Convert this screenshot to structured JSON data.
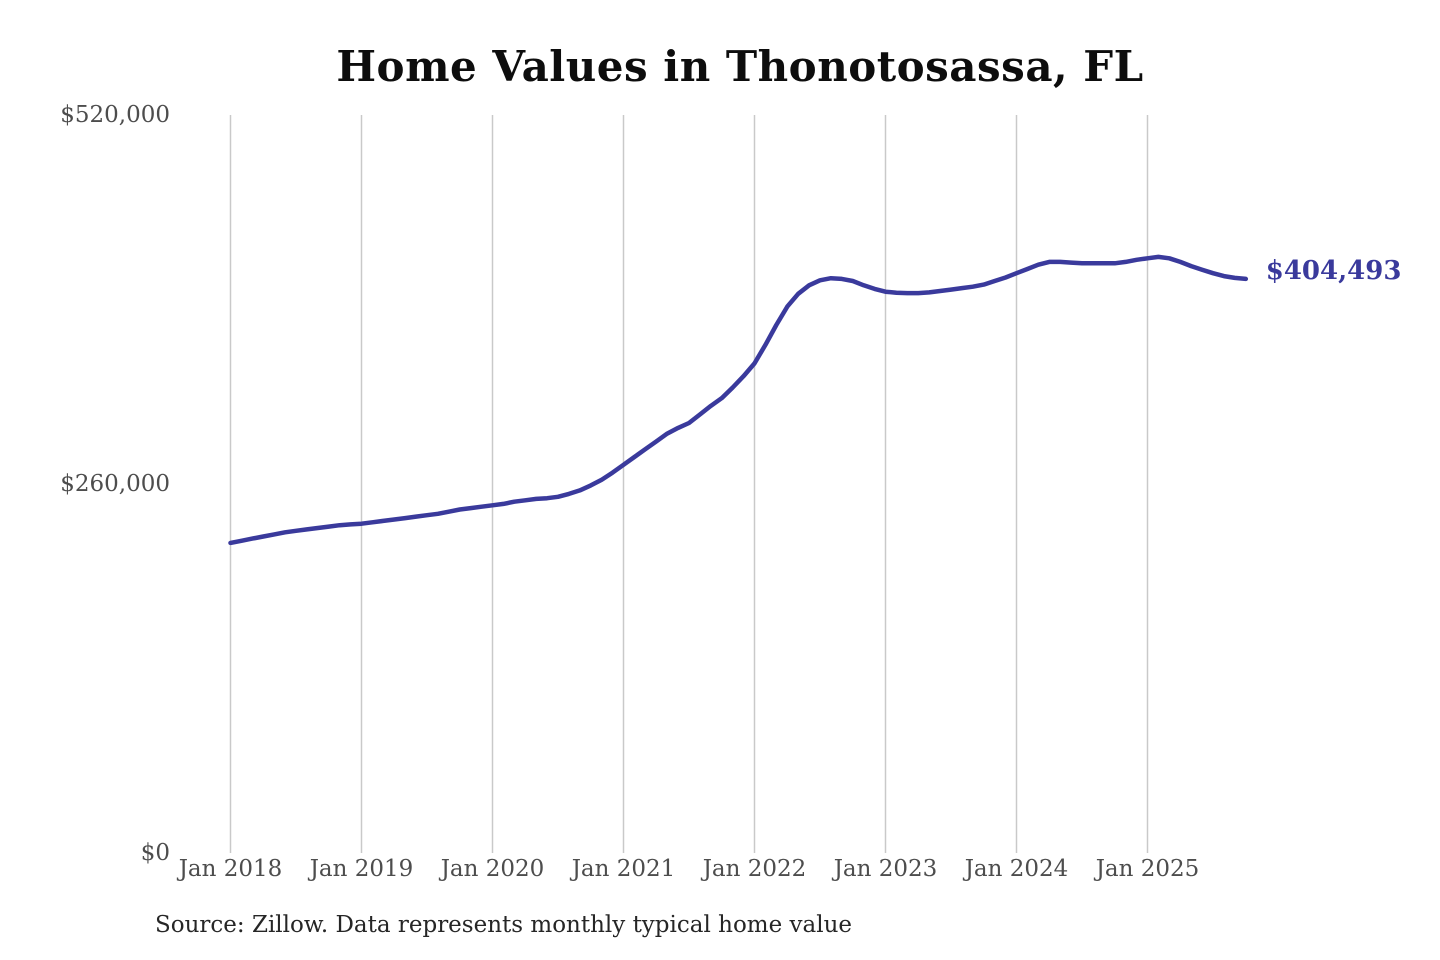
{
  "chart": {
    "title": "Home Values in Thonotosassa, FL",
    "end_label": "$404,493",
    "source": "Source: Zillow. Data represents monthly typical home value",
    "colors": {
      "line": "#3a3a9c",
      "end_label": "#3a3a9c",
      "gridline": "#c9c9c9",
      "tick_text": "#4d4d4d",
      "title_text": "#0d0d0d",
      "source_text": "#262626",
      "background": "#ffffff"
    }
  },
  "chart_data": {
    "type": "line",
    "title": "Home Values in Thonotosassa, FL",
    "xlabel": "",
    "ylabel": "",
    "ylim": [
      0,
      520000
    ],
    "y_ticks": [
      0,
      260000,
      520000
    ],
    "y_tick_labels": [
      "$0",
      "$260,000",
      "$520,000"
    ],
    "x_tick_labels": [
      "Jan 2018",
      "Jan 2019",
      "Jan 2020",
      "Jan 2021",
      "Jan 2022",
      "Jan 2023",
      "Jan 2024",
      "Jan 2025"
    ],
    "grid": "vertical-only",
    "legend": "none",
    "end_annotation": {
      "text": "$404,493",
      "value": 404493,
      "month": "2025-10"
    },
    "series": [
      {
        "name": "Monthly typical home value",
        "months": [
          "2018-01",
          "2018-02",
          "2018-03",
          "2018-04",
          "2018-05",
          "2018-06",
          "2018-07",
          "2018-08",
          "2018-09",
          "2018-10",
          "2018-11",
          "2018-12",
          "2019-01",
          "2019-02",
          "2019-03",
          "2019-04",
          "2019-05",
          "2019-06",
          "2019-07",
          "2019-08",
          "2019-09",
          "2019-10",
          "2019-11",
          "2019-12",
          "2020-01",
          "2020-02",
          "2020-03",
          "2020-04",
          "2020-05",
          "2020-06",
          "2020-07",
          "2020-08",
          "2020-09",
          "2020-10",
          "2020-11",
          "2020-12",
          "2021-01",
          "2021-02",
          "2021-03",
          "2021-04",
          "2021-05",
          "2021-06",
          "2021-07",
          "2021-08",
          "2021-09",
          "2021-10",
          "2021-11",
          "2021-12",
          "2022-01",
          "2022-02",
          "2022-03",
          "2022-04",
          "2022-05",
          "2022-06",
          "2022-07",
          "2022-08",
          "2022-09",
          "2022-10",
          "2022-11",
          "2022-12",
          "2023-01",
          "2023-02",
          "2023-03",
          "2023-04",
          "2023-05",
          "2023-06",
          "2023-07",
          "2023-08",
          "2023-09",
          "2023-10",
          "2023-11",
          "2023-12",
          "2024-01",
          "2024-02",
          "2024-03",
          "2024-04",
          "2024-05",
          "2024-06",
          "2024-07",
          "2024-08",
          "2024-09",
          "2024-10",
          "2024-11",
          "2024-12",
          "2025-01",
          "2025-02",
          "2025-03",
          "2025-04",
          "2025-05",
          "2025-06",
          "2025-07",
          "2025-08",
          "2025-09",
          "2025-10"
        ],
        "values": [
          218500,
          220000,
          221500,
          223000,
          224500,
          226000,
          227000,
          228000,
          229000,
          230000,
          231000,
          231500,
          232000,
          233000,
          234000,
          235000,
          236000,
          237000,
          238000,
          239000,
          240500,
          242000,
          243000,
          244000,
          245000,
          246000,
          247500,
          248500,
          249500,
          250000,
          251000,
          253000,
          255500,
          259000,
          263000,
          268000,
          273500,
          279000,
          284500,
          290000,
          295500,
          299500,
          303000,
          309000,
          315000,
          320500,
          328000,
          336000,
          345000,
          358000,
          372000,
          385000,
          394000,
          400000,
          403500,
          405000,
          404500,
          403000,
          400000,
          397500,
          395500,
          394800,
          394500,
          394500,
          395000,
          396000,
          397000,
          398000,
          399000,
          400500,
          403000,
          405500,
          408500,
          411500,
          414500,
          416500,
          416500,
          416000,
          415500,
          415500,
          415500,
          415500,
          416500,
          418000,
          419000,
          420000,
          419000,
          416500,
          413500,
          411000,
          408500,
          406500,
          405200,
          404493
        ]
      }
    ]
  }
}
